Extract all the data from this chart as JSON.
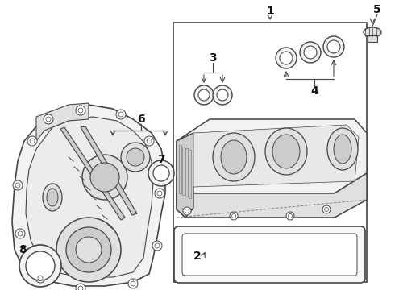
{
  "bg_color": "#ffffff",
  "lc": "#444444",
  "fill_light": "#f2f2f2",
  "fill_mid": "#e0e0e0",
  "fill_dark": "#cccccc"
}
